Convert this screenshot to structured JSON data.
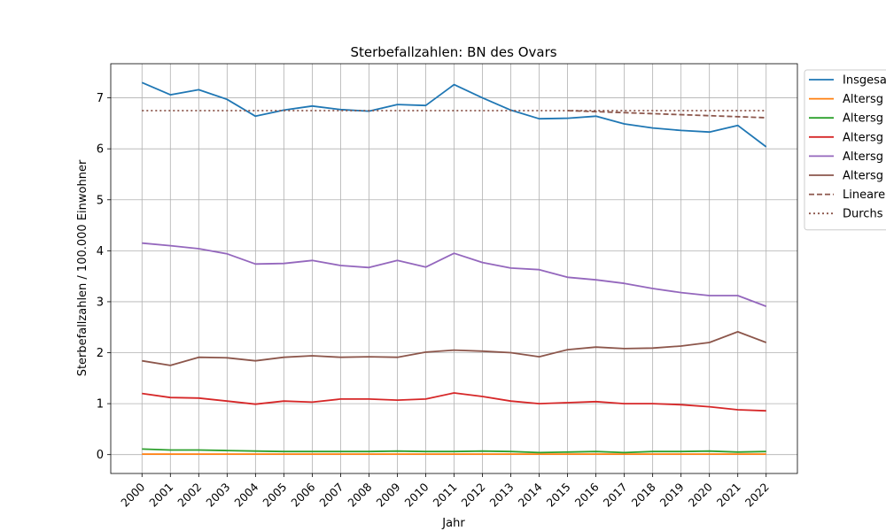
{
  "chart_data": {
    "type": "line",
    "title": "Sterbefallzahlen: BN des Ovars",
    "xlabel": "Jahr",
    "ylabel": "Sterbefallzahlen / 100.000 Einwohner",
    "x": [
      2000,
      2001,
      2002,
      2003,
      2004,
      2005,
      2006,
      2007,
      2008,
      2009,
      2010,
      2011,
      2012,
      2013,
      2014,
      2015,
      2016,
      2017,
      2018,
      2019,
      2020,
      2021,
      2022
    ],
    "x_tick_labels": [
      "2000",
      "2001",
      "2002",
      "2003",
      "2004",
      "2005",
      "2006",
      "2007",
      "2008",
      "2009",
      "2010",
      "2011",
      "2012",
      "2013",
      "2014",
      "2015",
      "2016",
      "2017",
      "2018",
      "2019",
      "2020",
      "2021",
      "2022"
    ],
    "ylim": [
      -0.37,
      7.67
    ],
    "y_ticks": [
      0,
      1,
      2,
      3,
      4,
      5,
      6,
      7
    ],
    "y_tick_labels": [
      "0",
      "1",
      "2",
      "3",
      "4",
      "5",
      "6",
      "7"
    ],
    "grid": true,
    "legend_position": "top-right, outside plot area (clipped)",
    "series": [
      {
        "name": "Insgesa",
        "color": "#1f77b4",
        "style": "solid",
        "values": [
          7.3,
          7.06,
          7.16,
          6.97,
          6.64,
          6.76,
          6.84,
          6.77,
          6.74,
          6.87,
          6.85,
          7.26,
          7.0,
          6.76,
          6.59,
          6.6,
          6.64,
          6.49,
          6.41,
          6.36,
          6.33,
          6.46,
          6.04
        ]
      },
      {
        "name": "Altersg",
        "color": "#ff7f0e",
        "style": "solid",
        "values": [
          0.01,
          0.01,
          0.01,
          0.01,
          0.01,
          0.01,
          0.01,
          0.01,
          0.01,
          0.01,
          0.01,
          0.01,
          0.01,
          0.01,
          0.01,
          0.01,
          0.01,
          0.01,
          0.01,
          0.01,
          0.01,
          0.01,
          0.01
        ]
      },
      {
        "name": "Altersg",
        "color": "#2ca02c",
        "style": "solid",
        "values": [
          0.11,
          0.09,
          0.09,
          0.08,
          0.07,
          0.06,
          0.06,
          0.06,
          0.06,
          0.07,
          0.06,
          0.06,
          0.07,
          0.06,
          0.04,
          0.05,
          0.06,
          0.04,
          0.06,
          0.06,
          0.07,
          0.05,
          0.06
        ]
      },
      {
        "name": "Altersg",
        "color": "#d62728",
        "style": "solid",
        "values": [
          1.2,
          1.12,
          1.11,
          1.05,
          0.99,
          1.05,
          1.03,
          1.09,
          1.09,
          1.07,
          1.09,
          1.21,
          1.14,
          1.05,
          1.0,
          1.02,
          1.04,
          1.0,
          1.0,
          0.98,
          0.94,
          0.88,
          0.86
        ]
      },
      {
        "name": "Altersg",
        "color": "#9467bd",
        "style": "solid",
        "values": [
          4.15,
          4.1,
          4.04,
          3.94,
          3.74,
          3.75,
          3.81,
          3.71,
          3.67,
          3.81,
          3.68,
          3.95,
          3.77,
          3.66,
          3.63,
          3.48,
          3.43,
          3.36,
          3.26,
          3.18,
          3.12,
          3.12,
          2.91
        ]
      },
      {
        "name": "Altersg",
        "color": "#8c564b",
        "style": "solid",
        "values": [
          1.84,
          1.75,
          1.91,
          1.9,
          1.84,
          1.91,
          1.94,
          1.91,
          1.92,
          1.91,
          2.01,
          2.05,
          2.03,
          2.0,
          1.92,
          2.06,
          2.11,
          2.08,
          2.09,
          2.13,
          2.2,
          2.41,
          2.2
        ]
      },
      {
        "name": "Lineare",
        "color": "#8c564b",
        "style": "dashed",
        "x": [
          2015,
          2022
        ],
        "values": [
          6.75,
          6.61
        ]
      },
      {
        "name": "Durchs",
        "color": "#8c564b",
        "style": "dotted",
        "x": [
          2000,
          2022
        ],
        "values": [
          6.75,
          6.75
        ]
      }
    ]
  }
}
